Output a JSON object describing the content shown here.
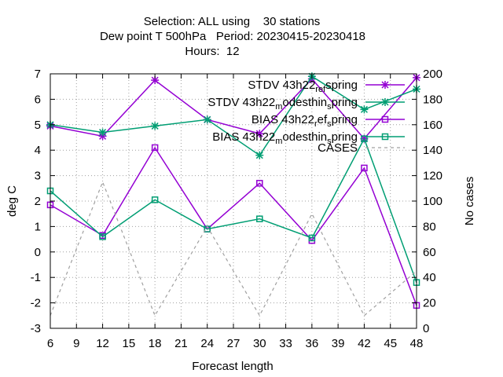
{
  "chart_data": {
    "type": "line",
    "title_lines": [
      "Selection: ALL using    30 stations",
      "Dew point T 500hPa   Period: 20230415-20230418",
      "Hours:  12"
    ],
    "xlabel": "Forecast length",
    "ylabel": "deg C",
    "y2label": "No cases",
    "xlim": [
      6,
      48
    ],
    "ylim": [
      -3,
      7
    ],
    "y2lim": [
      0,
      200
    ],
    "xticks": [
      6,
      9,
      12,
      15,
      18,
      21,
      24,
      27,
      30,
      33,
      36,
      39,
      42,
      45,
      48
    ],
    "yticks": [
      -3,
      -2,
      -1,
      0,
      1,
      2,
      3,
      4,
      5,
      6,
      7
    ],
    "y2ticks": [
      0,
      20,
      40,
      60,
      80,
      100,
      120,
      140,
      160,
      180,
      200
    ],
    "x": [
      6,
      12,
      18,
      24,
      30,
      36,
      42,
      48
    ],
    "grid": true,
    "legend_position": "top-right",
    "series": [
      {
        "name": "STDV 43h22_ref_spring",
        "legend": {
          "pre": "STDV 43h22",
          "sub": "ref",
          "post": "spring"
        },
        "color": "#9400d3",
        "marker": "x",
        "axis": "y",
        "values": [
          4.95,
          4.55,
          6.75,
          5.2,
          4.65,
          6.8,
          4.45,
          6.85
        ]
      },
      {
        "name": "STDV 43h22_modesthin_spring",
        "legend": {
          "pre": "STDV 43h22",
          "sub": "m",
          "post": "odesthin",
          "sub2": "s",
          "post2": "pring"
        },
        "color": "#009e73",
        "marker": "x",
        "axis": "y",
        "values": [
          5.0,
          4.7,
          4.95,
          5.2,
          3.8,
          6.9,
          5.6,
          6.4
        ]
      },
      {
        "name": "BIAS 43h22_ref_spring",
        "legend": {
          "pre": "BIAS 43h22",
          "sub": "r",
          "post": "ef",
          "sub2": "s",
          "post2": "pring"
        },
        "color": "#9400d3",
        "marker": "square",
        "axis": "y",
        "values": [
          1.85,
          0.65,
          4.1,
          0.9,
          2.7,
          0.45,
          3.3,
          -2.1
        ]
      },
      {
        "name": "BIAS 43h22_modesthin_spring",
        "legend": {
          "pre": "BIAS 43h22",
          "sub": "m",
          "post": "odesthin",
          "sub2": "s",
          "post2": "pring"
        },
        "color": "#009e73",
        "marker": "square",
        "axis": "y",
        "values": [
          2.4,
          0.6,
          2.05,
          0.9,
          1.3,
          0.55,
          4.45,
          -1.2
        ]
      },
      {
        "name": "CASES",
        "legend": {
          "pre": "CASES"
        },
        "color": "#a0a0a0",
        "marker": "none",
        "dashed": true,
        "axis": "y2",
        "values": [
          10,
          115,
          10,
          80,
          10,
          90,
          10,
          45
        ]
      }
    ]
  }
}
